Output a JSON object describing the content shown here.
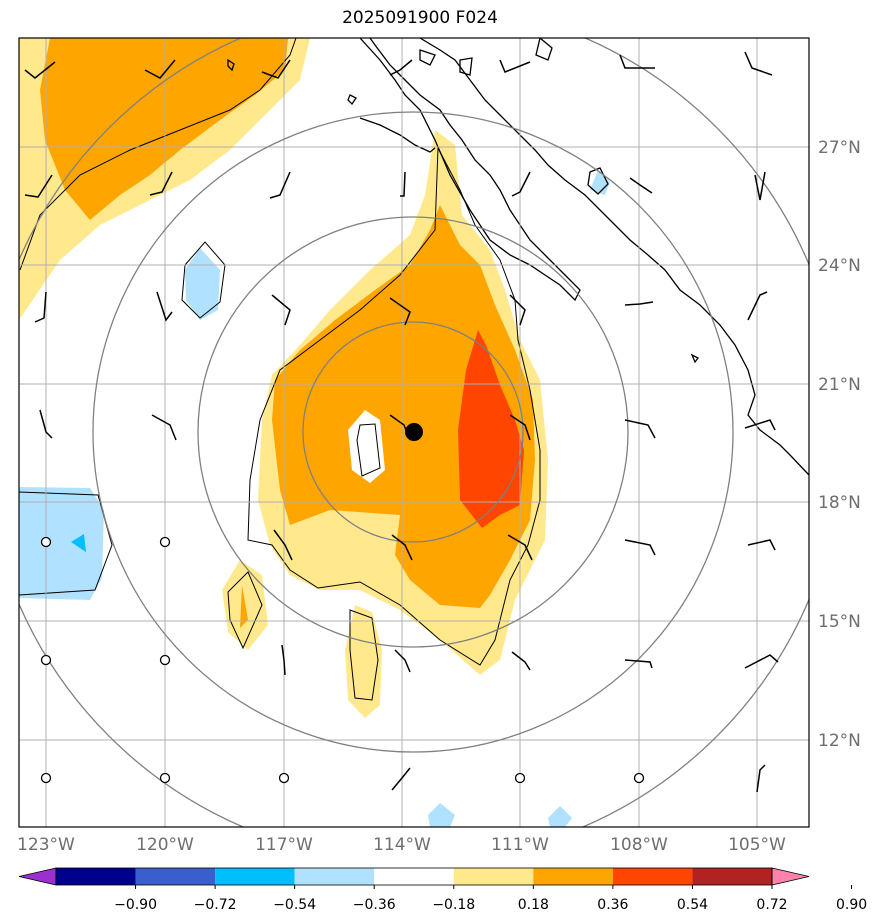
{
  "title": "2025091900 F024",
  "map": {
    "lon_ticks": [
      "123°W",
      "120°W",
      "117°W",
      "114°W",
      "111°W",
      "108°W",
      "105°W"
    ],
    "lat_ticks": [
      "27°N",
      "24°N",
      "21°N",
      "18°N",
      "15°N",
      "12°N"
    ],
    "storm_center_marker": "black-filled-circle"
  },
  "colorbar": {
    "levels": [
      "−0.90",
      "−0.72",
      "−0.54",
      "−0.36",
      "−0.18",
      "0.18",
      "0.36",
      "0.54",
      "0.72",
      "0.90"
    ],
    "colors": [
      "#9a30d0",
      "#00008c",
      "#3a5fcd",
      "#00bfff",
      "#b0e2ff",
      "#ffffff",
      "#ffe98c",
      "#ffa500",
      "#ff4500",
      "#b22222",
      "#ff82ab"
    ]
  },
  "colors": {
    "fill_light_yellow": "#ffe98c",
    "fill_orange": "#ffa500",
    "fill_red_orange": "#ff4500",
    "fill_light_blue": "#b0e2ff",
    "fill_deep_sky_blue": "#00bfff",
    "range_ring": "#808080",
    "grid": "#b0b0b0"
  }
}
